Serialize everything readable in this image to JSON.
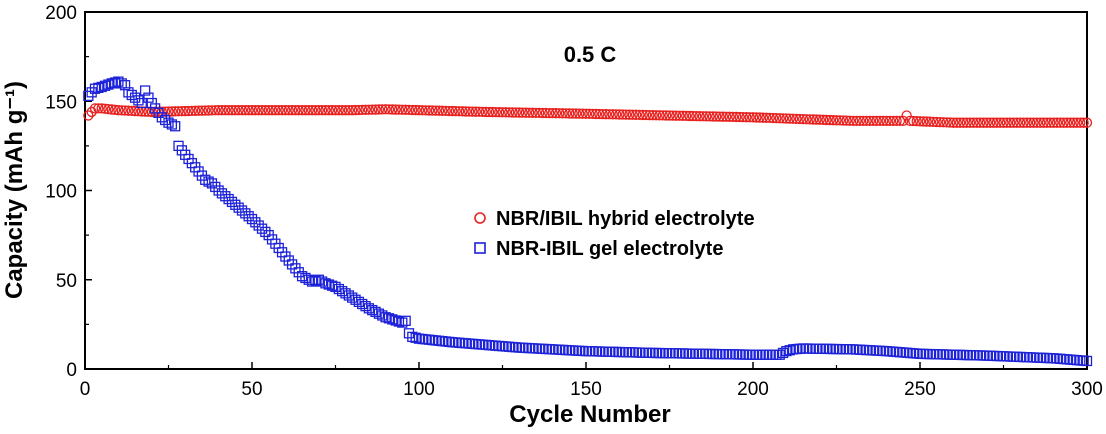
{
  "chart_data": {
    "type": "scatter",
    "annotation": "0.5 C",
    "xlabel": "Cycle Number",
    "ylabel": "Capacity (mAh g⁻¹)",
    "xlim": [
      0,
      300
    ],
    "ylim": [
      0,
      200
    ],
    "x_ticks": [
      0,
      50,
      100,
      150,
      200,
      250,
      300
    ],
    "y_ticks": [
      0,
      50,
      100,
      150,
      200
    ],
    "grid": false,
    "legend_position": "center-right",
    "series": [
      {
        "name": "NBR/IBIL hybrid electrolyte",
        "marker": "open-circle",
        "color": "#e8201e",
        "anchors": [
          [
            1,
            142
          ],
          [
            3,
            146
          ],
          [
            5,
            146
          ],
          [
            10,
            145
          ],
          [
            20,
            144
          ],
          [
            40,
            145
          ],
          [
            60,
            145
          ],
          [
            80,
            145
          ],
          [
            90,
            145.5
          ],
          [
            100,
            145
          ],
          [
            120,
            144
          ],
          [
            150,
            143
          ],
          [
            200,
            141
          ],
          [
            230,
            139
          ],
          [
            245,
            139
          ],
          [
            246,
            142
          ],
          [
            247,
            139
          ],
          [
            260,
            138
          ],
          [
            280,
            138
          ],
          [
            300,
            138
          ]
        ]
      },
      {
        "name": "NBR-IBIL gel electrolyte",
        "marker": "open-square",
        "color": "#1d22d8",
        "anchors": [
          [
            1,
            153
          ],
          [
            3,
            157
          ],
          [
            5,
            158
          ],
          [
            8,
            160
          ],
          [
            10,
            161
          ],
          [
            12,
            159
          ],
          [
            13,
            155
          ],
          [
            15,
            152
          ],
          [
            17,
            149
          ],
          [
            18,
            156
          ],
          [
            19,
            152
          ],
          [
            21,
            146
          ],
          [
            23,
            141
          ],
          [
            25,
            138
          ],
          [
            27,
            136
          ],
          [
            28,
            125
          ],
          [
            30,
            120
          ],
          [
            33,
            113
          ],
          [
            36,
            106
          ],
          [
            38,
            104
          ],
          [
            40,
            100
          ],
          [
            45,
            92
          ],
          [
            50,
            84
          ],
          [
            55,
            75
          ],
          [
            60,
            63
          ],
          [
            65,
            52
          ],
          [
            68,
            49
          ],
          [
            70,
            50
          ],
          [
            72,
            48
          ],
          [
            75,
            46
          ],
          [
            80,
            40
          ],
          [
            85,
            34
          ],
          [
            90,
            29
          ],
          [
            95,
            26
          ],
          [
            96,
            27
          ],
          [
            97,
            20
          ],
          [
            98,
            18
          ],
          [
            100,
            17
          ],
          [
            110,
            15
          ],
          [
            130,
            12
          ],
          [
            150,
            10
          ],
          [
            170,
            9
          ],
          [
            200,
            8
          ],
          [
            208,
            8
          ],
          [
            209,
            9
          ],
          [
            210,
            10
          ],
          [
            212,
            11
          ],
          [
            215,
            11.5
          ],
          [
            230,
            11
          ],
          [
            240,
            10
          ],
          [
            250,
            8.5
          ],
          [
            270,
            7.5
          ],
          [
            290,
            6
          ],
          [
            300,
            4.5
          ]
        ]
      }
    ]
  }
}
